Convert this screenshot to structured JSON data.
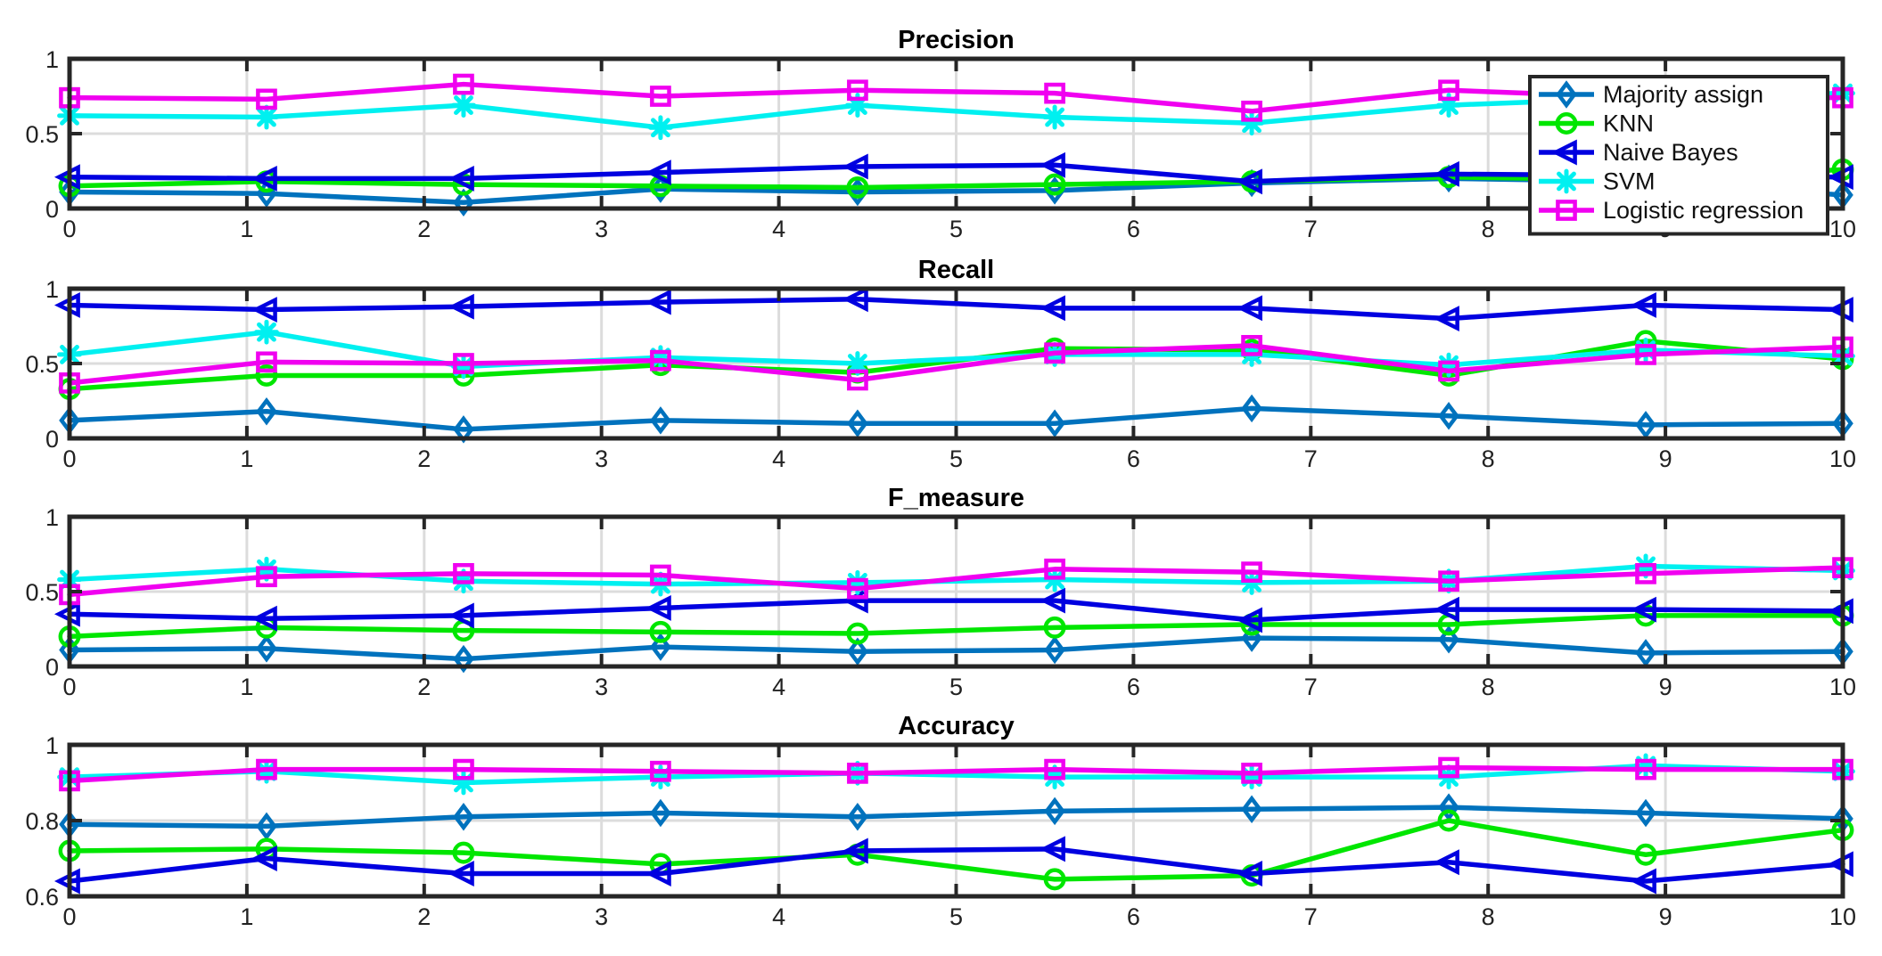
{
  "chart_data": [
    {
      "type": "line",
      "title": "Precision",
      "xlabel": "",
      "ylabel": "",
      "xlim": [
        0,
        10
      ],
      "ylim": [
        0,
        1
      ],
      "xticks": [
        "0",
        "1",
        "2",
        "3",
        "4",
        "5",
        "6",
        "7",
        "8",
        "9",
        "10"
      ],
      "yticks": [
        {
          "v": 0,
          "label": "0"
        },
        {
          "v": 0.5,
          "label": "0.5"
        },
        {
          "v": 1,
          "label": "1"
        }
      ],
      "grid": true,
      "legend": "top-right",
      "x": [
        0,
        1.111,
        2.222,
        3.333,
        4.444,
        5.556,
        6.667,
        7.778,
        8.889,
        10
      ],
      "series": [
        {
          "name": "Majority assign",
          "color": "#0072BD",
          "marker": "diamond",
          "values": [
            0.11,
            0.1,
            0.04,
            0.13,
            0.11,
            0.12,
            0.17,
            0.2,
            0.18,
            0.09
          ]
        },
        {
          "name": "KNN",
          "color": "#00E600",
          "marker": "circle",
          "values": [
            0.15,
            0.18,
            0.16,
            0.15,
            0.14,
            0.16,
            0.18,
            0.21,
            0.19,
            0.26
          ]
        },
        {
          "name": "Naive Bayes",
          "color": "#0000E0",
          "marker": "triangle-left",
          "values": [
            0.21,
            0.2,
            0.2,
            0.24,
            0.28,
            0.29,
            0.18,
            0.23,
            0.22,
            0.21
          ]
        },
        {
          "name": "SVM",
          "color": "#00F0F0",
          "marker": "asterisk",
          "values": [
            0.62,
            0.61,
            0.69,
            0.54,
            0.69,
            0.61,
            0.57,
            0.69,
            0.74,
            0.77
          ]
        },
        {
          "name": "Logistic regression",
          "color": "#F000F0",
          "marker": "square",
          "values": [
            0.74,
            0.73,
            0.83,
            0.75,
            0.79,
            0.77,
            0.65,
            0.79,
            0.74,
            0.74
          ]
        }
      ]
    },
    {
      "type": "line",
      "title": "Recall",
      "xlabel": "",
      "ylabel": "",
      "xlim": [
        0,
        10
      ],
      "ylim": [
        0,
        1
      ],
      "xticks": [
        "0",
        "1",
        "2",
        "3",
        "4",
        "5",
        "6",
        "7",
        "8",
        "9",
        "10"
      ],
      "yticks": [
        {
          "v": 0,
          "label": "0"
        },
        {
          "v": 0.5,
          "label": "0.5"
        },
        {
          "v": 1,
          "label": "1"
        }
      ],
      "grid": true,
      "x": [
        0,
        1.111,
        2.222,
        3.333,
        4.444,
        5.556,
        6.667,
        7.778,
        8.889,
        10
      ],
      "series": [
        {
          "name": "Majority assign",
          "color": "#0072BD",
          "marker": "diamond",
          "values": [
            0.12,
            0.18,
            0.06,
            0.12,
            0.1,
            0.1,
            0.2,
            0.15,
            0.09,
            0.1
          ]
        },
        {
          "name": "KNN",
          "color": "#00E600",
          "marker": "circle",
          "values": [
            0.33,
            0.42,
            0.42,
            0.49,
            0.44,
            0.6,
            0.59,
            0.42,
            0.65,
            0.53
          ]
        },
        {
          "name": "Naive Bayes",
          "color": "#0000E0",
          "marker": "triangle-left",
          "values": [
            0.89,
            0.86,
            0.88,
            0.91,
            0.93,
            0.87,
            0.87,
            0.8,
            0.89,
            0.86
          ]
        },
        {
          "name": "SVM",
          "color": "#00F0F0",
          "marker": "asterisk",
          "values": [
            0.56,
            0.71,
            0.48,
            0.54,
            0.5,
            0.56,
            0.56,
            0.49,
            0.59,
            0.55
          ]
        },
        {
          "name": "Logistic regression",
          "color": "#F000F0",
          "marker": "square",
          "values": [
            0.37,
            0.51,
            0.5,
            0.52,
            0.39,
            0.57,
            0.62,
            0.45,
            0.56,
            0.61
          ]
        }
      ]
    },
    {
      "type": "line",
      "title": "F_measure",
      "xlabel": "",
      "ylabel": "",
      "xlim": [
        0,
        10
      ],
      "ylim": [
        0,
        1
      ],
      "xticks": [
        "0",
        "1",
        "2",
        "3",
        "4",
        "5",
        "6",
        "7",
        "8",
        "9",
        "10"
      ],
      "yticks": [
        {
          "v": 0,
          "label": "0"
        },
        {
          "v": 0.5,
          "label": "0.5"
        },
        {
          "v": 1,
          "label": "1"
        }
      ],
      "grid": true,
      "x": [
        0,
        1.111,
        2.222,
        3.333,
        4.444,
        5.556,
        6.667,
        7.778,
        8.889,
        10
      ],
      "series": [
        {
          "name": "Majority assign",
          "color": "#0072BD",
          "marker": "diamond",
          "values": [
            0.11,
            0.12,
            0.05,
            0.13,
            0.1,
            0.11,
            0.19,
            0.18,
            0.09,
            0.1
          ]
        },
        {
          "name": "KNN",
          "color": "#00E600",
          "marker": "circle",
          "values": [
            0.2,
            0.26,
            0.24,
            0.23,
            0.22,
            0.26,
            0.28,
            0.28,
            0.34,
            0.34
          ]
        },
        {
          "name": "Naive Bayes",
          "color": "#0000E0",
          "marker": "triangle-left",
          "values": [
            0.35,
            0.32,
            0.34,
            0.39,
            0.44,
            0.44,
            0.31,
            0.38,
            0.38,
            0.37
          ]
        },
        {
          "name": "SVM",
          "color": "#00F0F0",
          "marker": "asterisk",
          "values": [
            0.58,
            0.65,
            0.57,
            0.55,
            0.56,
            0.58,
            0.56,
            0.57,
            0.67,
            0.64
          ]
        },
        {
          "name": "Logistic regression",
          "color": "#F000F0",
          "marker": "square",
          "values": [
            0.48,
            0.6,
            0.62,
            0.61,
            0.52,
            0.65,
            0.63,
            0.57,
            0.62,
            0.66
          ]
        }
      ]
    },
    {
      "type": "line",
      "title": "Accuracy",
      "xlabel": "",
      "ylabel": "",
      "xlim": [
        0,
        10
      ],
      "ylim": [
        0.6,
        1
      ],
      "xticks": [
        "0",
        "1",
        "2",
        "3",
        "4",
        "5",
        "6",
        "7",
        "8",
        "9",
        "10"
      ],
      "yticks": [
        {
          "v": 0.6,
          "label": "0.6"
        },
        {
          "v": 0.8,
          "label": "0.8"
        },
        {
          "v": 1,
          "label": "1"
        }
      ],
      "grid": true,
      "x": [
        0,
        1.111,
        2.222,
        3.333,
        4.444,
        5.556,
        6.667,
        7.778,
        8.889,
        10
      ],
      "series": [
        {
          "name": "Majority assign",
          "color": "#0072BD",
          "marker": "diamond",
          "values": [
            0.79,
            0.785,
            0.81,
            0.82,
            0.81,
            0.825,
            0.83,
            0.835,
            0.82,
            0.805
          ]
        },
        {
          "name": "KNN",
          "color": "#00E600",
          "marker": "circle",
          "values": [
            0.72,
            0.725,
            0.715,
            0.685,
            0.71,
            0.645,
            0.655,
            0.8,
            0.71,
            0.775
          ]
        },
        {
          "name": "Naive Bayes",
          "color": "#0000E0",
          "marker": "triangle-left",
          "values": [
            0.64,
            0.7,
            0.66,
            0.66,
            0.72,
            0.725,
            0.66,
            0.69,
            0.64,
            0.685
          ]
        },
        {
          "name": "SVM",
          "color": "#00F0F0",
          "marker": "asterisk",
          "values": [
            0.915,
            0.93,
            0.9,
            0.915,
            0.925,
            0.915,
            0.915,
            0.915,
            0.945,
            0.93
          ]
        },
        {
          "name": "Logistic regression",
          "color": "#F000F0",
          "marker": "square",
          "values": [
            0.905,
            0.935,
            0.935,
            0.93,
            0.925,
            0.935,
            0.925,
            0.94,
            0.935,
            0.935
          ]
        }
      ]
    }
  ]
}
